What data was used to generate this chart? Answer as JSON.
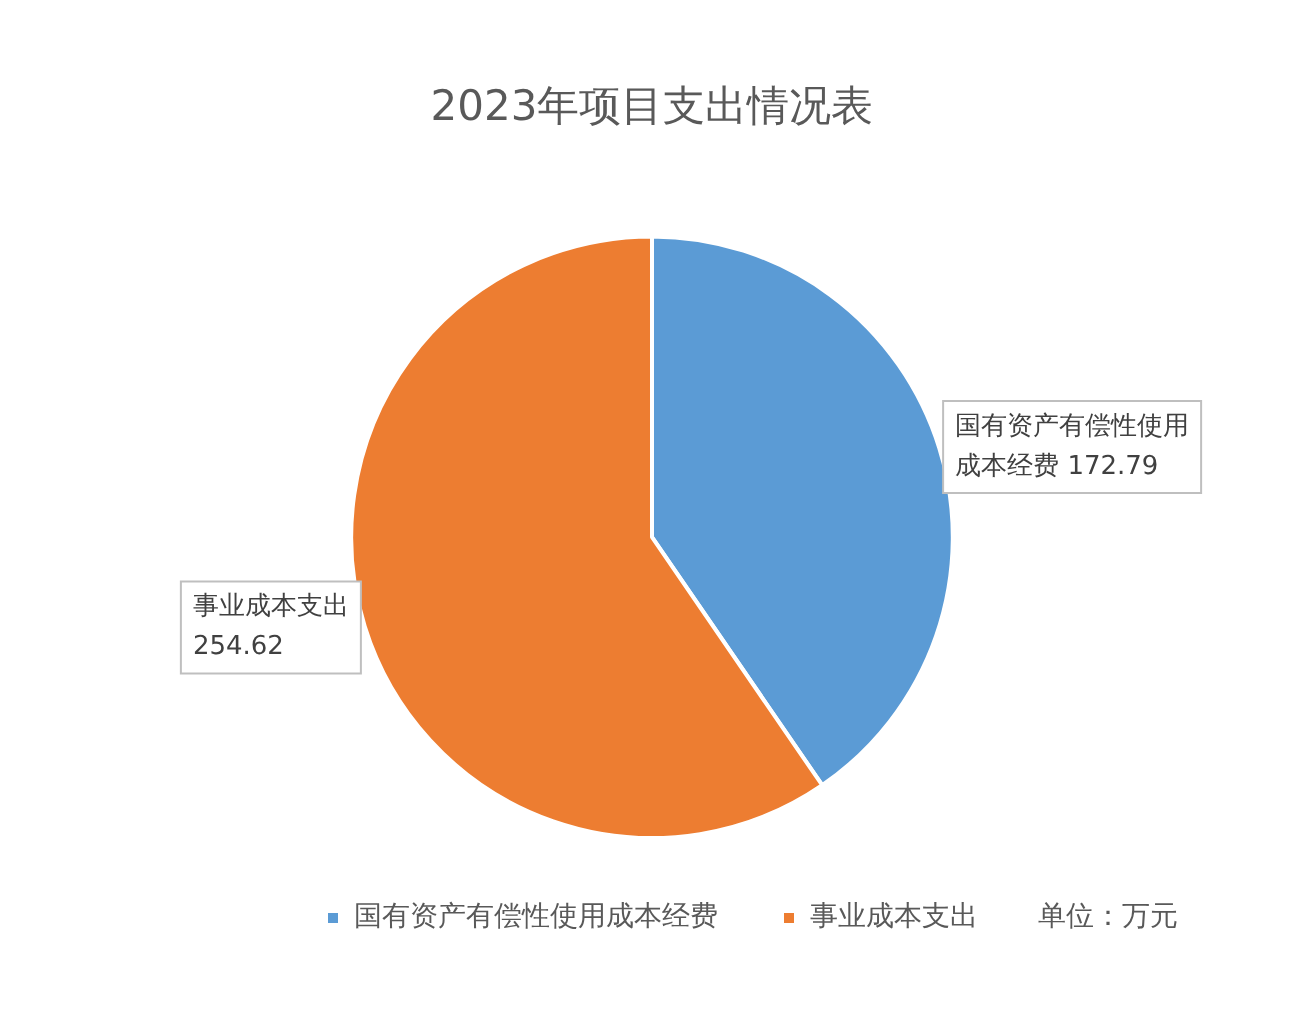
{
  "chart_data": {
    "type": "pie",
    "title": "2023年项目支出情况表",
    "categories": [
      "国有资产有偿性使用成本经费",
      "事业成本支出"
    ],
    "values": [
      172.79,
      254.62
    ],
    "colors": [
      "#5b9bd5",
      "#ed7d31"
    ],
    "data_labels": true,
    "legend": "bottom",
    "annotations": [
      "单位：万元"
    ]
  }
}
